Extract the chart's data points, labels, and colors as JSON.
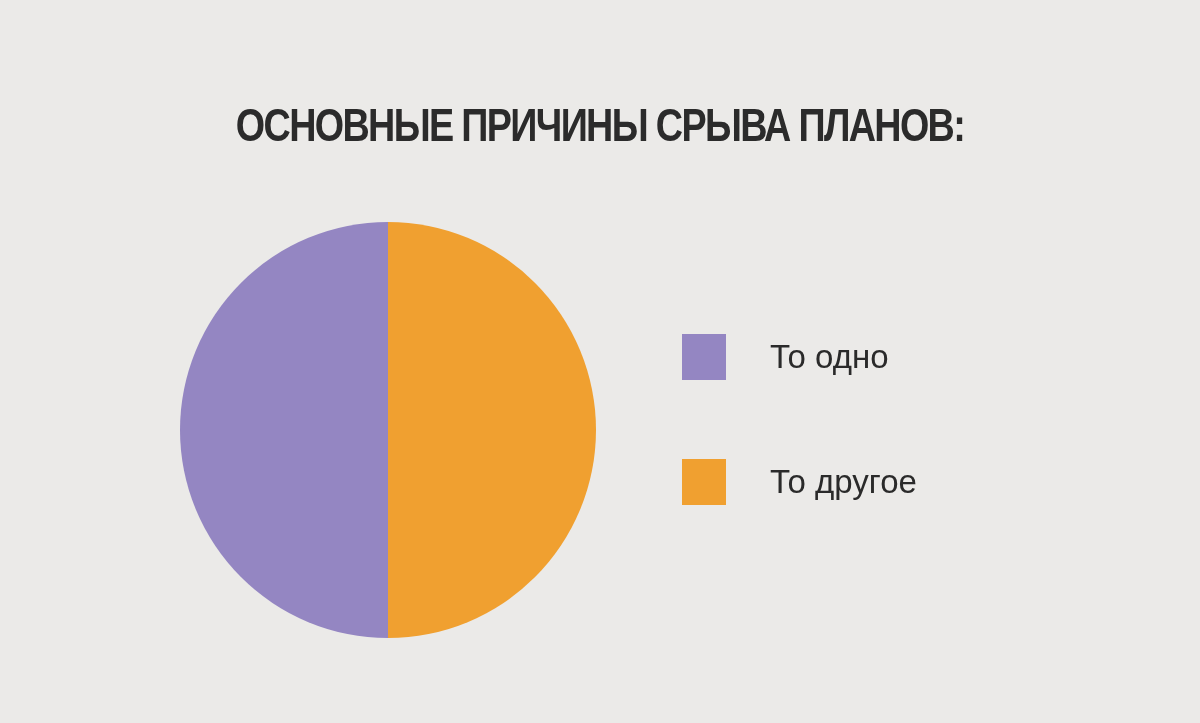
{
  "chart_data": {
    "type": "pie",
    "title": "ОСНОВНЫЕ ПРИЧИНЫ СРЫВА ПЛАНОВ:",
    "categories": [
      "То одно",
      "То другое"
    ],
    "values": [
      50,
      50
    ],
    "colors": [
      "#9486c2",
      "#f0a030"
    ],
    "legend": "right"
  }
}
